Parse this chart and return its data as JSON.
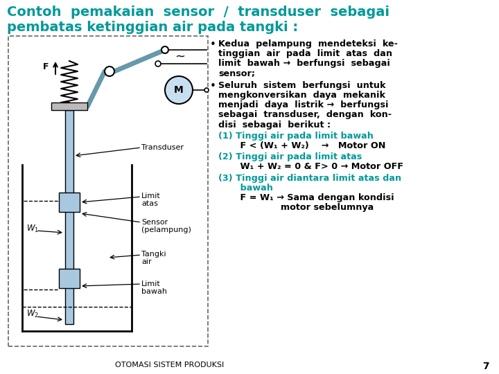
{
  "title_line1": "Contoh  pemakaian  sensor  /  transduser  sebagai",
  "title_line2": "pembatas ketinggian air pada tangki :",
  "title_color": "#009999",
  "bg_color": "#FFFFFF",
  "teal_color": "#009999",
  "black_color": "#000000",
  "diagram_border_color": "#666666",
  "float_fill": "#A8C8E0",
  "motor_fill": "#C8DFF0",
  "rod_fill": "#A8C8E0",
  "footer": "OTOMASI SISTEM PRODUKSI",
  "footer_page": "7"
}
